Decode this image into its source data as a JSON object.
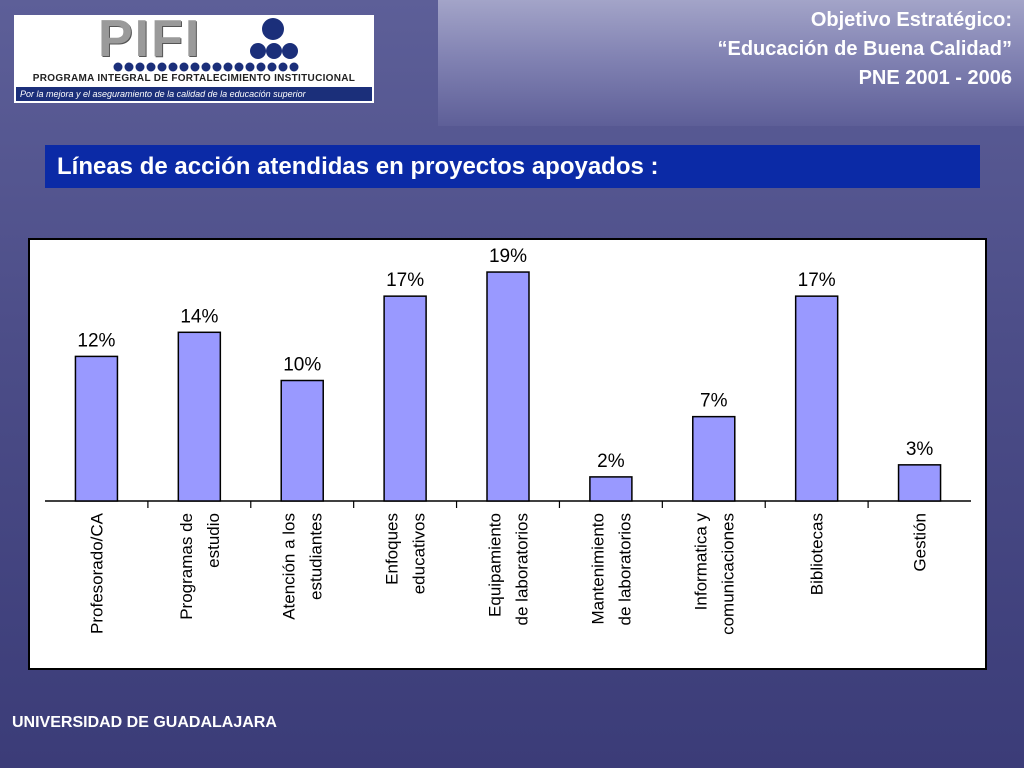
{
  "logo": {
    "wordmark": "PIFI",
    "line1": "PROGRAMA INTEGRAL DE FORTALECIMIENTO INSTITUCIONAL",
    "line2": "Por la mejora y el aseguramiento de la calidad de la educación superior"
  },
  "header": {
    "line1": "Objetivo Estratégico:",
    "line2": "“Educación de Buena Calidad”",
    "line3": "PNE 2001 - 2006"
  },
  "section_title": "Líneas de acción atendidas en proyectos apoyados :",
  "footer": "UNIVERSIDAD DE GUADALAJARA",
  "colors": {
    "bar_fill": "#9999ff",
    "bar_stroke": "#000000",
    "title_band": "#0b2aa6",
    "background": "#4c4d88"
  },
  "chart_data": {
    "type": "bar",
    "title": "",
    "xlabel": "",
    "ylabel": "",
    "ylim": [
      0,
      20
    ],
    "grid": false,
    "legend": "none",
    "categories": [
      [
        "Profesorado/CA"
      ],
      [
        "Programas de",
        "estudio"
      ],
      [
        "Atención a los",
        "estudiantes"
      ],
      [
        "Enfoques",
        "educativos"
      ],
      [
        "Equipamiento",
        "de laboratorios"
      ],
      [
        "Mantenimiento",
        "de laboratorios"
      ],
      [
        "Informatica y",
        "comunicaciones"
      ],
      [
        "Bibliotecas"
      ],
      [
        "Gestión"
      ]
    ],
    "values": [
      12,
      14,
      10,
      17,
      19,
      2,
      7,
      17,
      3
    ],
    "value_labels": [
      "12%",
      "14%",
      "10%",
      "17%",
      "19%",
      "2%",
      "7%",
      "17%",
      "3%"
    ]
  }
}
